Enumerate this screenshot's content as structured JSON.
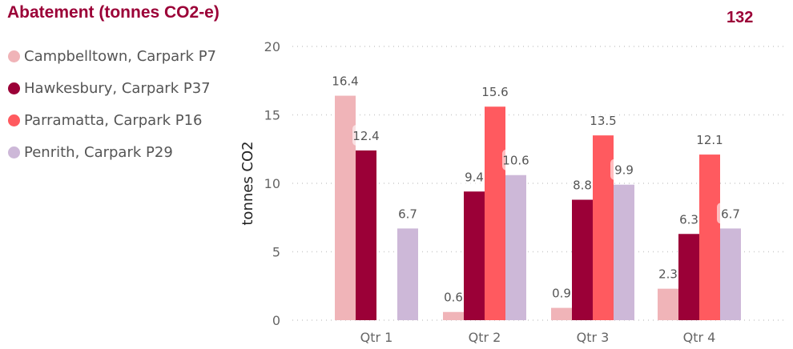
{
  "header": {
    "title": "Abatement (tonnes CO2-e)",
    "count": "132"
  },
  "chart_data": {
    "type": "bar",
    "title": "Abatement (tonnes CO2-e)",
    "xlabel": "",
    "ylabel": "tonnes CO2",
    "ylim": [
      0,
      20
    ],
    "yticks": [
      "0",
      "5",
      "10",
      "15",
      "20"
    ],
    "grid": true,
    "legend_position": "left",
    "categories": [
      "Qtr 1",
      "Qtr 2",
      "Qtr 3",
      "Qtr 4"
    ],
    "series": [
      {
        "name": "Campbelltown, Carpark P7",
        "color": "#F0B4B8",
        "values": [
          16.4,
          0.6,
          0.9,
          2.3
        ]
      },
      {
        "name": "Hawkesbury, Carpark P37",
        "color": "#9B0037",
        "values": [
          12.4,
          9.4,
          8.8,
          6.3
        ]
      },
      {
        "name": "Parramatta, Carpark P16",
        "color": "#FF5A5F",
        "values": [
          null,
          15.6,
          13.5,
          12.1
        ]
      },
      {
        "name": "Penrith, Carpark P29",
        "color": "#CDB8D8",
        "values": [
          6.7,
          10.6,
          9.9,
          6.7
        ]
      }
    ]
  }
}
